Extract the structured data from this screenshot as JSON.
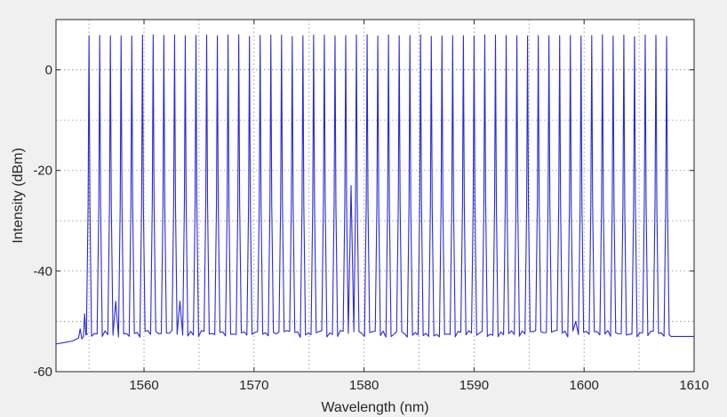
{
  "chart_data": {
    "type": "line",
    "title": "",
    "xlabel": "Wavelength (nm)",
    "ylabel": "Intensity (dBm)",
    "xlim": [
      1552,
      1610
    ],
    "ylim": [
      -60,
      10
    ],
    "xticks": [
      1560,
      1570,
      1580,
      1590,
      1600,
      1610
    ],
    "yticks": [
      -60,
      -40,
      -20,
      0
    ],
    "minor_grid_x": [
      1555,
      1565,
      1575,
      1585,
      1595,
      1605
    ],
    "minor_grid_y": [
      -50,
      -30,
      -10
    ],
    "grid": true,
    "grid_style": "dotted",
    "background_color": "#ffffff",
    "figure_color": "#f0f0f0",
    "series": [
      {
        "color": "#2a2adc",
        "line_count": 55,
        "first_peak_nm": 1555.0,
        "last_peak_nm": 1607.5,
        "peak_dbm": 7.0,
        "floor_dbm": -52.5,
        "edge_floor_dbm": -54.5,
        "right_tail_dbm": -53.0,
        "pre_spikes": [
          {
            "x": 1554.2,
            "y": -51.5
          },
          {
            "x": 1554.6,
            "y": -48.5
          }
        ],
        "peak_dips": [
          {
            "x": 1557.5,
            "y": -46.0
          },
          {
            "x": 1563.0,
            "y": -46.0
          },
          {
            "x": 1579.0,
            "y": -23.0
          },
          {
            "x": 1599.5,
            "y": -50.0
          }
        ]
      }
    ]
  }
}
